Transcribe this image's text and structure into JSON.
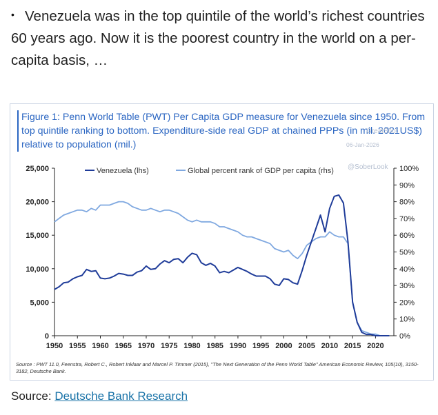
{
  "post": {
    "bullet": "•",
    "text": "Venezuela was in the top quintile of the world’s richest countries 60 years ago. Now it is the poorest country in the world on a per-capita basis, …"
  },
  "figure": {
    "title": "Figure 1: Penn World Table (PWT) Per Capita GDP measure for Venezuela since 1950. From top quintile ranking to bottom. Expenditure-side real GDP at chained PPPs (in mil. 2021US$) relative to population (mil.)",
    "watermark_app": "GreatShot",
    "watermark_date": "06-Jan-2026",
    "watermark_handle": "@SoberLook",
    "source_note": "Source : PWT 11.0, Feenstra, Robert C., Robert Inklaar and Marcel P. Timmer (2015), \"The Next Generation of the Penn World Table\" American Economic Review, 105(10), 3150-3182, Deutsche Bank."
  },
  "chart_data": {
    "type": "line",
    "title": "Figure 1: Penn World Table (PWT) Per Capita GDP measure for Venezuela since 1950. From top quintile ranking to bottom. Expenditure-side real GDP at chained PPPs (in mil. 2021US$) relative to population (mil.)",
    "xlabel": "",
    "ylabel_left": "",
    "ylabel_right": "",
    "xlim": [
      1950,
      2024
    ],
    "ylim_left": [
      0,
      25000
    ],
    "ylim_right": [
      0,
      100
    ],
    "x_ticks": [
      "1950",
      "1955",
      "1960",
      "1965",
      "1970",
      "1975",
      "1980",
      "1985",
      "1990",
      "1995",
      "2000",
      "2005",
      "2010",
      "2015",
      "2020"
    ],
    "y_left_ticks": [
      "0",
      "5,000",
      "10,000",
      "15,000",
      "20,000",
      "25,000"
    ],
    "y_right_ticks": [
      "0%",
      "10%",
      "20%",
      "30%",
      "40%",
      "50%",
      "60%",
      "70%",
      "80%",
      "90%",
      "100%"
    ],
    "grid": false,
    "legend_position": "top",
    "series": [
      {
        "name": "Venezuela (lhs)",
        "axis": "left",
        "color": "#1f3c99",
        "x": [
          1950,
          1951,
          1952,
          1953,
          1954,
          1955,
          1956,
          1957,
          1958,
          1959,
          1960,
          1961,
          1962,
          1963,
          1964,
          1965,
          1966,
          1967,
          1968,
          1969,
          1970,
          1971,
          1972,
          1973,
          1974,
          1975,
          1976,
          1977,
          1978,
          1979,
          1980,
          1981,
          1982,
          1983,
          1984,
          1985,
          1986,
          1987,
          1988,
          1989,
          1990,
          1991,
          1992,
          1993,
          1994,
          1995,
          1996,
          1997,
          1998,
          1999,
          2000,
          2001,
          2002,
          2003,
          2004,
          2005,
          2006,
          2007,
          2008,
          2009,
          2010,
          2011,
          2012,
          2013,
          2014,
          2015,
          2016,
          2017,
          2018,
          2019,
          2020,
          2021,
          2022,
          2023
        ],
        "values": [
          6900,
          7300,
          7900,
          8000,
          8500,
          8800,
          9000,
          9900,
          9600,
          9700,
          8600,
          8500,
          8600,
          8900,
          9300,
          9200,
          9000,
          9000,
          9500,
          9700,
          10400,
          9900,
          10000,
          10700,
          11200,
          10900,
          11400,
          11500,
          10900,
          11700,
          12300,
          12100,
          10900,
          10500,
          10800,
          10400,
          9400,
          9600,
          9400,
          9800,
          10200,
          9900,
          9600,
          9200,
          8900,
          8900,
          8900,
          8500,
          7700,
          7500,
          8500,
          8400,
          7900,
          7700,
          9700,
          12000,
          14000,
          16000,
          18000,
          15500,
          19000,
          20800,
          21000,
          19800,
          14000,
          5000,
          2000,
          500,
          200,
          200,
          0,
          0,
          0,
          0
        ]
      },
      {
        "name": "Global percent rank of GDP per capita (rhs)",
        "axis": "right",
        "color": "#7fa8e0",
        "x": [
          1950,
          1951,
          1952,
          1953,
          1954,
          1955,
          1956,
          1957,
          1958,
          1959,
          1960,
          1961,
          1962,
          1963,
          1964,
          1965,
          1966,
          1967,
          1968,
          1969,
          1970,
          1971,
          1972,
          1973,
          1974,
          1975,
          1976,
          1977,
          1978,
          1979,
          1980,
          1981,
          1982,
          1983,
          1984,
          1985,
          1986,
          1987,
          1988,
          1989,
          1990,
          1991,
          1992,
          1993,
          1994,
          1995,
          1996,
          1997,
          1998,
          1999,
          2000,
          2001,
          2002,
          2003,
          2004,
          2005,
          2006,
          2007,
          2008,
          2009,
          2010,
          2011,
          2012,
          2013,
          2014,
          2015,
          2016,
          2017,
          2018,
          2019,
          2020,
          2021,
          2022,
          2023
        ],
        "values": [
          68,
          70,
          72,
          73,
          74,
          75,
          75,
          74,
          76,
          75,
          78,
          78,
          78,
          79,
          80,
          80,
          79,
          77,
          76,
          75,
          75,
          76,
          75,
          74,
          75,
          75,
          74,
          73,
          71,
          69,
          68,
          69,
          68,
          68,
          68,
          67,
          65,
          65,
          64,
          63,
          62,
          60,
          59,
          59,
          58,
          57,
          56,
          55,
          52,
          51,
          50,
          51,
          48,
          46,
          49,
          54,
          56,
          58,
          59,
          59,
          62,
          60,
          59,
          59,
          55,
          20,
          8,
          3,
          2,
          1,
          1,
          0,
          0,
          0
        ]
      }
    ]
  },
  "source": {
    "label": "Source: ",
    "link_text": "Deutsche Bank Research"
  }
}
